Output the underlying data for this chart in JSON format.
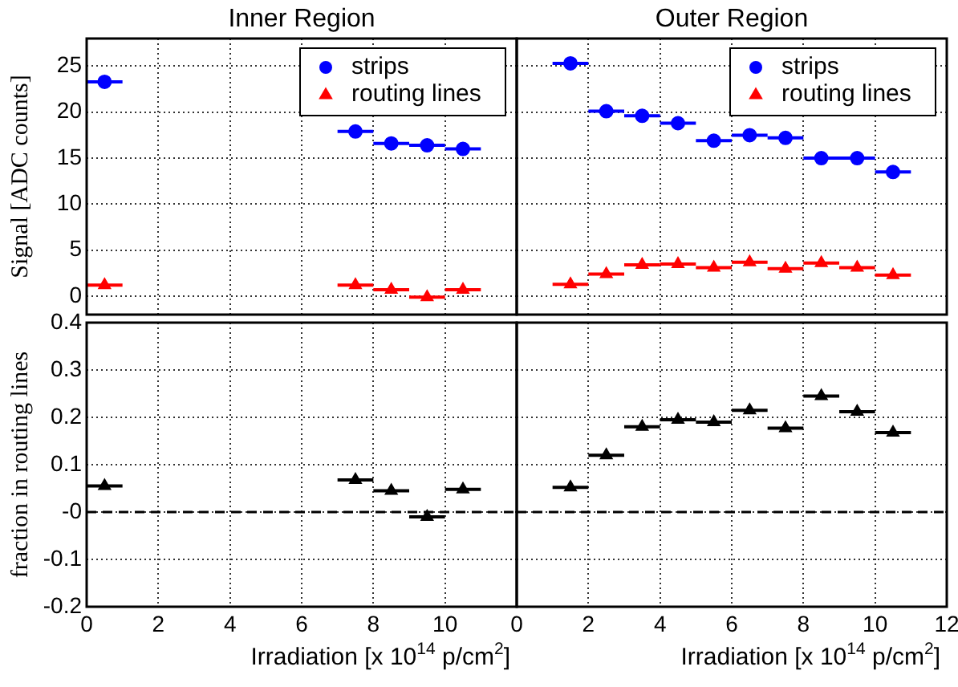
{
  "chart_data": [
    {
      "type": "scatter",
      "title": "Inner Region",
      "ylabel": "Signal [ADC counts]",
      "x": [
        0.5,
        7.5,
        8.5,
        9.5,
        10.5
      ],
      "series": [
        {
          "name": "strips",
          "color": "#0000ff",
          "marker": "circle",
          "values": [
            23.3,
            17.9,
            16.6,
            16.4,
            16.0
          ],
          "xerrors": [
            0.5,
            0.5,
            0.5,
            0.5,
            0.5
          ]
        },
        {
          "name": "routing lines",
          "color": "#ff0000",
          "marker": "triangle",
          "values": [
            1.2,
            1.2,
            0.7,
            -0.1,
            0.7
          ],
          "xerrors": [
            0.5,
            0.5,
            0.5,
            0.5,
            0.5
          ]
        }
      ],
      "xlim": [
        0,
        12
      ],
      "xticks": [
        0,
        2,
        4,
        6,
        8,
        10,
        12
      ],
      "ylim": [
        -2,
        28
      ],
      "yticks": [
        0,
        5,
        10,
        15,
        20,
        25
      ],
      "grid": true,
      "legend": "top right",
      "tick_labels": "y"
    },
    {
      "type": "scatter",
      "title": "Outer Region",
      "x": [
        1.5,
        2.5,
        3.5,
        4.5,
        5.5,
        6.5,
        7.5,
        8.5,
        9.5,
        10.5
      ],
      "series": [
        {
          "name": "strips",
          "color": "#0000ff",
          "marker": "circle",
          "values": [
            25.3,
            20.1,
            19.6,
            18.8,
            16.9,
            17.5,
            17.2,
            15.0,
            15.0,
            13.5
          ],
          "xerrors": [
            0.5,
            0.5,
            0.5,
            0.5,
            0.5,
            0.5,
            0.5,
            0.5,
            0.5,
            0.5
          ]
        },
        {
          "name": "routing lines",
          "color": "#ff0000",
          "marker": "triangle",
          "values": [
            1.3,
            2.4,
            3.4,
            3.5,
            3.1,
            3.7,
            3.0,
            3.6,
            3.1,
            2.3
          ],
          "xerrors": [
            0.5,
            0.5,
            0.5,
            0.5,
            0.5,
            0.5,
            0.5,
            0.5,
            0.5,
            0.5
          ]
        }
      ],
      "xlim": [
        0,
        12
      ],
      "xticks": [
        0,
        2,
        4,
        6,
        8,
        10,
        12
      ],
      "ylim": [
        -2,
        28
      ],
      "yticks": [
        0,
        5,
        10,
        15,
        20,
        25
      ],
      "grid": true,
      "legend": "top right",
      "tick_labels": false
    },
    {
      "type": "scatter",
      "ylabel": "fraction in routing lines",
      "xlabel": "Irradiation [x 10$^{14}$ p/cm$^{2}$]",
      "x": [
        0.5,
        7.5,
        8.5,
        9.5,
        10.5
      ],
      "series": [
        {
          "color": "#000000",
          "marker": "triangle",
          "values": [
            0.055,
            0.068,
            0.045,
            -0.01,
            0.048
          ],
          "xerrors": [
            0.5,
            0.5,
            0.5,
            0.5,
            0.5
          ]
        }
      ],
      "xlim": [
        0,
        12
      ],
      "xticks": [
        0,
        2,
        4,
        6,
        8,
        10
      ],
      "ylim": [
        -0.2,
        0.4
      ],
      "yticks": [
        -0.2,
        -0.1,
        {
          "value": 0,
          "label": "-0"
        },
        0.1,
        0.2,
        0.3,
        0.4
      ],
      "grid": true,
      "ref_lines": [
        {
          "axis": "y",
          "value": 0,
          "color": "#000000",
          "line_style": "dashed"
        }
      ]
    },
    {
      "type": "scatter",
      "xlabel": "Irradiation [x 10$^{14}$ p/cm$^{2}$]",
      "x": [
        1.5,
        2.5,
        3.5,
        4.5,
        5.5,
        6.5,
        7.5,
        8.5,
        9.5,
        10.5
      ],
      "series": [
        {
          "color": "#000000",
          "marker": "triangle",
          "values": [
            0.052,
            0.12,
            0.18,
            0.195,
            0.19,
            0.215,
            0.177,
            0.245,
            0.212,
            0.168
          ],
          "xerrors": [
            0.5,
            0.5,
            0.5,
            0.5,
            0.5,
            0.5,
            0.5,
            0.5,
            0.5,
            0.5
          ]
        }
      ],
      "xlim": [
        0,
        12
      ],
      "xticks": [
        0,
        2,
        4,
        6,
        8,
        10,
        12
      ],
      "ylim": [
        -0.2,
        0.4
      ],
      "yticks": [
        -0.2,
        -0.1,
        0,
        0.1,
        0.2,
        0.3,
        0.4
      ],
      "grid": true,
      "tick_labels": "x",
      "ref_lines": [
        {
          "axis": "y",
          "value": 0,
          "color": "#000000",
          "line_style": "dashed"
        }
      ]
    }
  ]
}
